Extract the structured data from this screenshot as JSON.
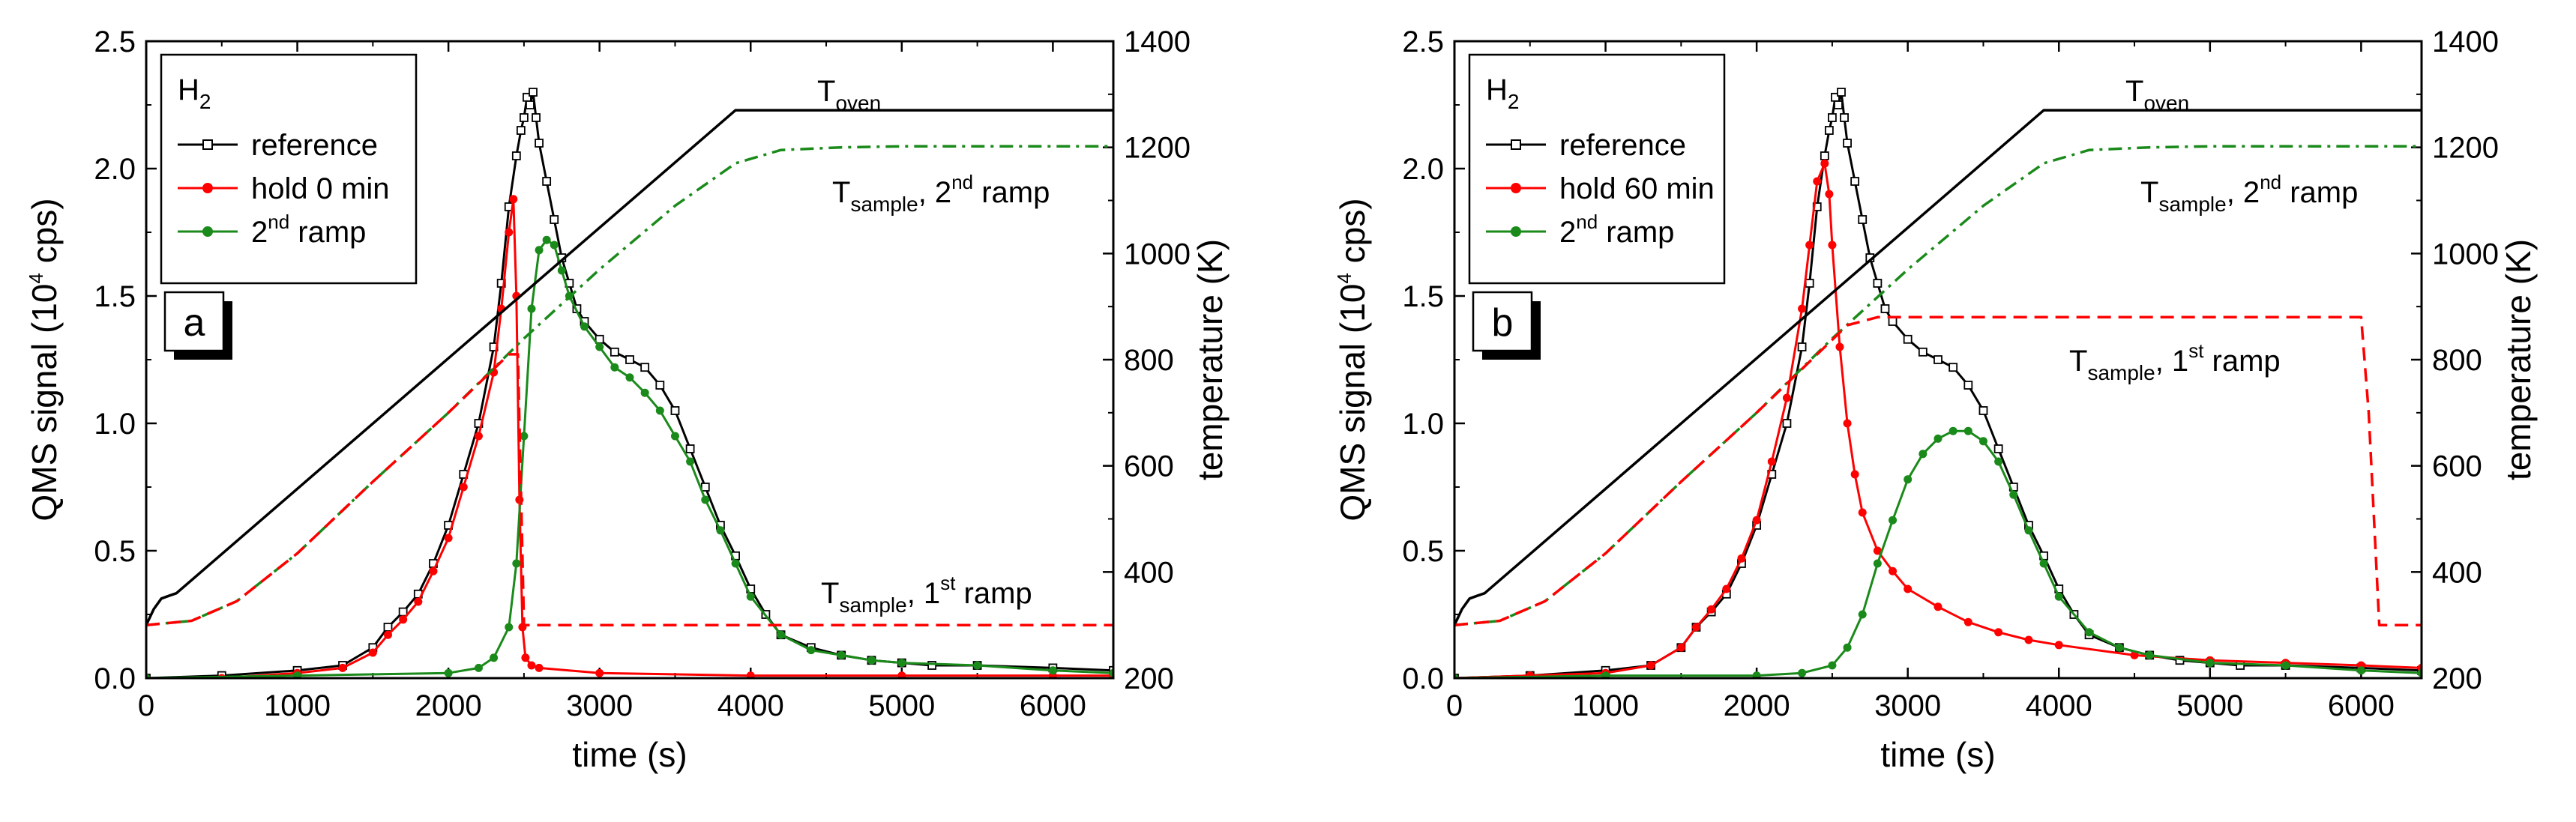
{
  "chart_data": [
    {
      "type": "line",
      "panel_label": "a",
      "xlabel": "time (s)",
      "ylabel": {
        "pre": "QMS signal (10",
        "sup": "4",
        "post": " cps)"
      },
      "y2label": "temperature (K)",
      "xlim": [
        0,
        6400
      ],
      "ylim": [
        0,
        2.5
      ],
      "y2lim": [
        200,
        1400
      ],
      "xticks": [
        "0",
        "1000",
        "2000",
        "3000",
        "4000",
        "5000",
        "6000"
      ],
      "yticks": [
        "0.0",
        "0.5",
        "1.0",
        "1.5",
        "2.0",
        "2.5"
      ],
      "y2ticks": [
        "200",
        "400",
        "600",
        "800",
        "1000",
        "1200",
        "1400"
      ],
      "legend": {
        "title": {
          "main": "H",
          "sub": "2"
        },
        "entries": [
          {
            "label": "reference",
            "color": "#000000",
            "marker": "open-square"
          },
          {
            "label": "hold 0 min",
            "color": "#ff0000",
            "marker": "dot"
          },
          {
            "pre": "2",
            "sup": "nd",
            "post": " ramp",
            "color": "#1a8a1a",
            "marker": "dot"
          }
        ]
      },
      "annotations": [
        {
          "main": "T",
          "sub": "oven",
          "post": ""
        },
        {
          "main": "T",
          "sub": "sample",
          "post": ", 2",
          "sup": "nd",
          "post2": " ramp"
        },
        {
          "main": "T",
          "sub": "sample",
          "post": ", 1",
          "sup": "st",
          "post2": " ramp"
        }
      ],
      "series": [
        {
          "role": "QMS",
          "color": "#000000",
          "marker": "open-square",
          "x": [
            0,
            500,
            1000,
            1300,
            1500,
            1600,
            1700,
            1800,
            1900,
            2000,
            2100,
            2200,
            2300,
            2350,
            2400,
            2450,
            2480,
            2500,
            2520,
            2540,
            2560,
            2580,
            2600,
            2650,
            2700,
            2750,
            2800,
            2850,
            2900,
            3000,
            3100,
            3200,
            3300,
            3400,
            3500,
            3600,
            3700,
            3800,
            3900,
            4000,
            4100,
            4200,
            4400,
            4600,
            4800,
            5000,
            5200,
            5500,
            6000,
            6400
          ],
          "y": [
            0.0,
            0.01,
            0.03,
            0.05,
            0.12,
            0.2,
            0.26,
            0.33,
            0.45,
            0.6,
            0.8,
            1.0,
            1.3,
            1.55,
            1.85,
            2.05,
            2.15,
            2.2,
            2.28,
            2.25,
            2.3,
            2.2,
            2.1,
            1.95,
            1.8,
            1.65,
            1.55,
            1.45,
            1.4,
            1.33,
            1.28,
            1.25,
            1.22,
            1.15,
            1.05,
            0.9,
            0.75,
            0.6,
            0.48,
            0.35,
            0.25,
            0.17,
            0.12,
            0.09,
            0.07,
            0.06,
            0.05,
            0.05,
            0.04,
            0.03
          ]
        },
        {
          "role": "QMS",
          "color": "#ff0000",
          "marker": "dot",
          "x": [
            0,
            500,
            1000,
            1300,
            1500,
            1600,
            1700,
            1800,
            1900,
            2000,
            2100,
            2200,
            2300,
            2350,
            2400,
            2430,
            2450,
            2470,
            2490,
            2510,
            2550,
            2600,
            3000,
            4000,
            5000,
            6000,
            6400
          ],
          "y": [
            0.0,
            0.0,
            0.02,
            0.04,
            0.1,
            0.17,
            0.23,
            0.3,
            0.42,
            0.55,
            0.75,
            0.95,
            1.2,
            1.45,
            1.75,
            1.88,
            1.5,
            0.7,
            0.2,
            0.08,
            0.05,
            0.04,
            0.02,
            0.01,
            0.01,
            0.01,
            0.01
          ]
        },
        {
          "role": "QMS",
          "color": "#1a8a1a",
          "marker": "dot",
          "x": [
            0,
            1000,
            2000,
            2200,
            2300,
            2400,
            2450,
            2500,
            2550,
            2600,
            2650,
            2700,
            2750,
            2800,
            2900,
            3000,
            3100,
            3200,
            3300,
            3400,
            3500,
            3600,
            3700,
            3800,
            3900,
            4000,
            4200,
            4400,
            4600,
            4800,
            5000,
            5500,
            6000,
            6400
          ],
          "y": [
            0.0,
            0.01,
            0.02,
            0.04,
            0.08,
            0.2,
            0.45,
            0.95,
            1.45,
            1.68,
            1.72,
            1.7,
            1.6,
            1.5,
            1.38,
            1.3,
            1.22,
            1.18,
            1.12,
            1.05,
            0.95,
            0.85,
            0.7,
            0.58,
            0.45,
            0.32,
            0.17,
            0.11,
            0.09,
            0.07,
            0.06,
            0.05,
            0.03,
            0.02
          ]
        },
        {
          "role": "T",
          "color": "#000000",
          "style": "solid",
          "x": [
            0,
            50,
            100,
            150,
            200,
            3900,
            6400
          ],
          "y": [
            300,
            330,
            350,
            355,
            360,
            1270,
            1270
          ]
        },
        {
          "role": "T",
          "color": "#1a8a1a",
          "style": "dashdot",
          "x": [
            0,
            300,
            600,
            1000,
            1500,
            2000,
            2500,
            3000,
            3500,
            3900,
            4200,
            4600,
            5000,
            6400
          ],
          "y": [
            300,
            308,
            345,
            435,
            570,
            700,
            840,
            970,
            1090,
            1170,
            1195,
            1200,
            1202,
            1202
          ]
        },
        {
          "role": "T",
          "color": "#ff0000",
          "style": "dash",
          "x": [
            0,
            300,
            600,
            1000,
            1500,
            2000,
            2400,
            2460,
            2500,
            6400
          ],
          "y": [
            300,
            308,
            345,
            435,
            570,
            700,
            810,
            810,
            300,
            300
          ]
        }
      ]
    },
    {
      "type": "line",
      "panel_label": "b",
      "xlabel": "time (s)",
      "ylabel": {
        "pre": "QMS signal (10",
        "sup": "4",
        "post": " cps)"
      },
      "y2label": "temperature (K)",
      "xlim": [
        0,
        6400
      ],
      "ylim": [
        0,
        2.5
      ],
      "y2lim": [
        200,
        1400
      ],
      "xticks": [
        "0",
        "1000",
        "2000",
        "3000",
        "4000",
        "5000",
        "6000"
      ],
      "yticks": [
        "0.0",
        "0.5",
        "1.0",
        "1.5",
        "2.0",
        "2.5"
      ],
      "y2ticks": [
        "200",
        "400",
        "600",
        "800",
        "1000",
        "1200",
        "1400"
      ],
      "legend": {
        "title": {
          "main": "H",
          "sub": "2"
        },
        "entries": [
          {
            "label": "reference",
            "color": "#000000",
            "marker": "open-square"
          },
          {
            "label": "hold 60 min",
            "color": "#ff0000",
            "marker": "dot"
          },
          {
            "pre": "2",
            "sup": "nd",
            "post": " ramp",
            "color": "#1a8a1a",
            "marker": "dot"
          }
        ]
      },
      "annotations": [
        {
          "main": "T",
          "sub": "oven",
          "post": ""
        },
        {
          "main": "T",
          "sub": "sample",
          "post": ", 2",
          "sup": "nd",
          "post2": " ramp"
        },
        {
          "main": "T",
          "sub": "sample",
          "post": ", 1",
          "sup": "st",
          "post2": " ramp"
        }
      ],
      "series": [
        {
          "role": "QMS",
          "color": "#000000",
          "marker": "open-square",
          "x": [
            0,
            500,
            1000,
            1300,
            1500,
            1600,
            1700,
            1800,
            1900,
            2000,
            2100,
            2200,
            2300,
            2350,
            2400,
            2450,
            2480,
            2500,
            2520,
            2540,
            2560,
            2580,
            2600,
            2650,
            2700,
            2750,
            2800,
            2850,
            2900,
            3000,
            3100,
            3200,
            3300,
            3400,
            3500,
            3600,
            3700,
            3800,
            3900,
            4000,
            4100,
            4200,
            4400,
            4600,
            4800,
            5000,
            5200,
            5500,
            6000,
            6400
          ],
          "y": [
            0.0,
            0.01,
            0.03,
            0.05,
            0.12,
            0.2,
            0.26,
            0.33,
            0.45,
            0.6,
            0.8,
            1.0,
            1.3,
            1.55,
            1.85,
            2.05,
            2.15,
            2.2,
            2.28,
            2.25,
            2.3,
            2.2,
            2.1,
            1.95,
            1.8,
            1.65,
            1.55,
            1.45,
            1.4,
            1.33,
            1.28,
            1.25,
            1.22,
            1.15,
            1.05,
            0.9,
            0.75,
            0.6,
            0.48,
            0.35,
            0.25,
            0.17,
            0.12,
            0.09,
            0.07,
            0.06,
            0.05,
            0.05,
            0.04,
            0.03
          ]
        },
        {
          "role": "QMS",
          "color": "#ff0000",
          "marker": "dot",
          "x": [
            0,
            500,
            1000,
            1300,
            1500,
            1600,
            1700,
            1800,
            1900,
            2000,
            2100,
            2200,
            2300,
            2350,
            2400,
            2450,
            2480,
            2500,
            2550,
            2600,
            2650,
            2700,
            2800,
            2900,
            3000,
            3200,
            3400,
            3600,
            3800,
            4000,
            4500,
            5000,
            5500,
            6000,
            6400
          ],
          "y": [
            0.0,
            0.01,
            0.02,
            0.05,
            0.12,
            0.2,
            0.27,
            0.35,
            0.47,
            0.62,
            0.85,
            1.1,
            1.45,
            1.7,
            1.95,
            2.02,
            1.9,
            1.7,
            1.3,
            1.0,
            0.8,
            0.65,
            0.5,
            0.42,
            0.35,
            0.28,
            0.22,
            0.18,
            0.15,
            0.13,
            0.09,
            0.07,
            0.06,
            0.05,
            0.04
          ]
        },
        {
          "role": "QMS",
          "color": "#1a8a1a",
          "marker": "dot",
          "x": [
            0,
            1000,
            2000,
            2300,
            2500,
            2600,
            2700,
            2800,
            2900,
            3000,
            3100,
            3200,
            3300,
            3400,
            3500,
            3600,
            3700,
            3800,
            3900,
            4000,
            4200,
            4400,
            4600,
            5000,
            5500,
            6000,
            6400
          ],
          "y": [
            0.0,
            0.01,
            0.01,
            0.02,
            0.05,
            0.12,
            0.25,
            0.45,
            0.62,
            0.78,
            0.88,
            0.94,
            0.97,
            0.97,
            0.93,
            0.85,
            0.72,
            0.58,
            0.45,
            0.32,
            0.18,
            0.12,
            0.09,
            0.06,
            0.05,
            0.03,
            0.02
          ]
        },
        {
          "role": "T",
          "color": "#000000",
          "style": "solid",
          "x": [
            0,
            50,
            100,
            150,
            200,
            3900,
            6400
          ],
          "y": [
            300,
            330,
            350,
            355,
            360,
            1270,
            1270
          ]
        },
        {
          "role": "T",
          "color": "#1a8a1a",
          "style": "dashdot",
          "x": [
            0,
            300,
            600,
            1000,
            1500,
            2000,
            2500,
            3000,
            3500,
            3900,
            4200,
            4600,
            5000,
            6400
          ],
          "y": [
            300,
            308,
            345,
            435,
            570,
            700,
            840,
            970,
            1090,
            1170,
            1195,
            1200,
            1202,
            1202
          ]
        },
        {
          "role": "T",
          "color": "#ff0000",
          "style": "dash",
          "x": [
            0,
            300,
            600,
            1000,
            1500,
            2000,
            2400,
            2600,
            2800,
            6000,
            6050,
            6120,
            6400
          ],
          "y": [
            300,
            308,
            345,
            435,
            570,
            700,
            810,
            865,
            880,
            880,
            700,
            300,
            300
          ]
        }
      ]
    }
  ]
}
